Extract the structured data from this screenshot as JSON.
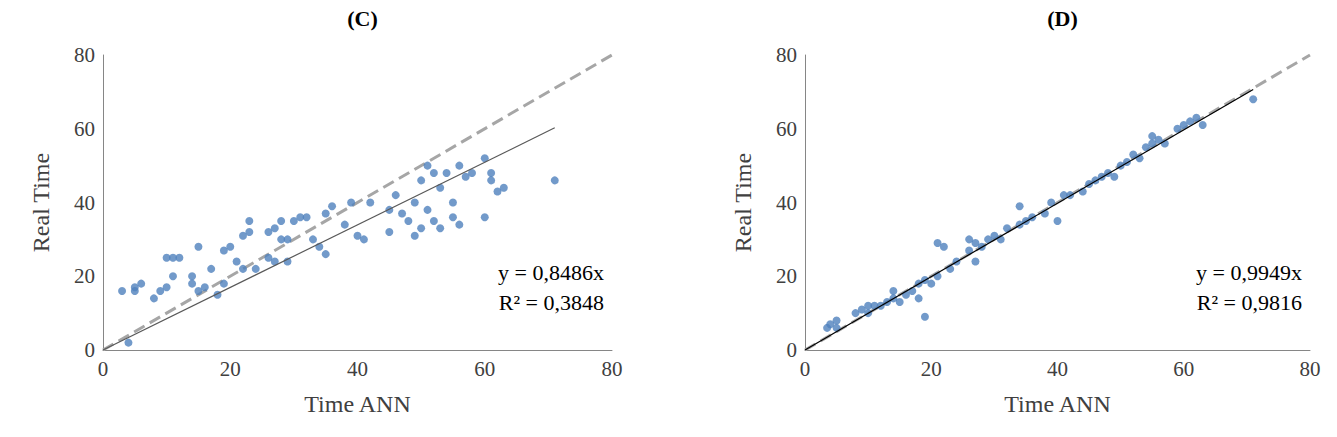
{
  "chart_data": [
    {
      "type": "scatter",
      "title": "(C)",
      "x_label": "Time ANN",
      "y_label": "Real Time",
      "color": "#4f81bd",
      "marker": "circle",
      "grid": false,
      "xlim": [
        0,
        80
      ],
      "ylim": [
        0,
        80
      ],
      "xticks": [
        0,
        20,
        40,
        60,
        80
      ],
      "yticks": [
        0,
        20,
        40,
        60,
        80
      ],
      "x": [
        3,
        4,
        5,
        6,
        5,
        8,
        9,
        10,
        10,
        11,
        12,
        11,
        14,
        14,
        15,
        15,
        16,
        17,
        18,
        19,
        19,
        20,
        21,
        22,
        22,
        23,
        23,
        24,
        26,
        26,
        27,
        27,
        28,
        28,
        29,
        29,
        30,
        31,
        32,
        33,
        34,
        35,
        35,
        36,
        38,
        39,
        40,
        41,
        42,
        45,
        45,
        46,
        47,
        48,
        49,
        49,
        50,
        50,
        51,
        51,
        52,
        52,
        53,
        53,
        54,
        55,
        55,
        56,
        56,
        57,
        58,
        60,
        60,
        61,
        61,
        62,
        63,
        71
      ],
      "values": [
        16,
        2,
        16,
        18,
        17,
        14,
        16,
        17,
        25,
        20,
        25,
        25,
        20,
        18,
        28,
        16,
        17,
        22,
        15,
        18,
        27,
        28,
        24,
        22,
        31,
        32,
        35,
        22,
        25,
        32,
        24,
        33,
        30,
        35,
        30,
        24,
        35,
        36,
        36,
        30,
        28,
        26,
        37,
        39,
        34,
        40,
        31,
        30,
        40,
        38,
        32,
        42,
        37,
        35,
        31,
        40,
        33,
        46,
        50,
        38,
        48,
        35,
        44,
        33,
        48,
        40,
        36,
        50,
        34,
        47,
        48,
        52,
        36,
        46,
        48,
        43,
        44,
        46
      ],
      "fit": {
        "slope": 0.8486,
        "label": "y = 0,8486x",
        "color": "#595959",
        "line_style": "solid"
      },
      "r2": {
        "value": 0.3848,
        "label": "R² = 0,3848"
      },
      "reference": {
        "slope": 1,
        "color": "#a6a6a6",
        "line_style": "dashed"
      }
    },
    {
      "type": "scatter",
      "title": "(D)",
      "x_label": "Time ANN",
      "y_label": "Real Time",
      "color": "#4f81bd",
      "marker": "circle",
      "grid": false,
      "xlim": [
        0,
        80
      ],
      "ylim": [
        0,
        80
      ],
      "xticks": [
        0,
        20,
        40,
        60,
        80
      ],
      "yticks": [
        0,
        20,
        40,
        60,
        80
      ],
      "x": [
        3.5,
        4,
        5,
        5,
        8,
        9,
        10,
        10,
        11,
        12,
        13,
        14,
        14,
        15,
        16,
        17,
        18,
        18,
        19,
        19,
        20,
        21,
        21,
        22,
        23,
        24,
        26,
        26,
        27,
        27,
        28,
        29,
        30,
        31,
        32,
        34,
        34,
        35,
        36,
        38,
        39,
        40,
        41,
        42,
        44,
        45,
        46,
        47,
        48,
        49,
        50,
        51,
        52,
        53,
        54,
        55,
        55,
        56,
        57,
        59,
        60,
        61,
        62,
        63,
        71
      ],
      "values": [
        6,
        7,
        8,
        6,
        10,
        11,
        10,
        12,
        12,
        12,
        13,
        16,
        14,
        13,
        15,
        16,
        18,
        14,
        9,
        19,
        18,
        20,
        29,
        28,
        22,
        24,
        27,
        30,
        24,
        29,
        28,
        30,
        31,
        30,
        33,
        34,
        39,
        35,
        36,
        37,
        40,
        35,
        42,
        42,
        43,
        45,
        46,
        47,
        48,
        47,
        50,
        51,
        53,
        52,
        55,
        58,
        56,
        57,
        56,
        60,
        61,
        62,
        63,
        61,
        68
      ],
      "fit": {
        "slope": 0.9949,
        "label": "y = 0,9949x",
        "color": "#000000",
        "line_style": "solid"
      },
      "r2": {
        "value": 0.9816,
        "label": "R² = 0,9816"
      },
      "reference": {
        "slope": 1,
        "color": "#a6a6a6",
        "line_style": "dashed"
      }
    }
  ]
}
